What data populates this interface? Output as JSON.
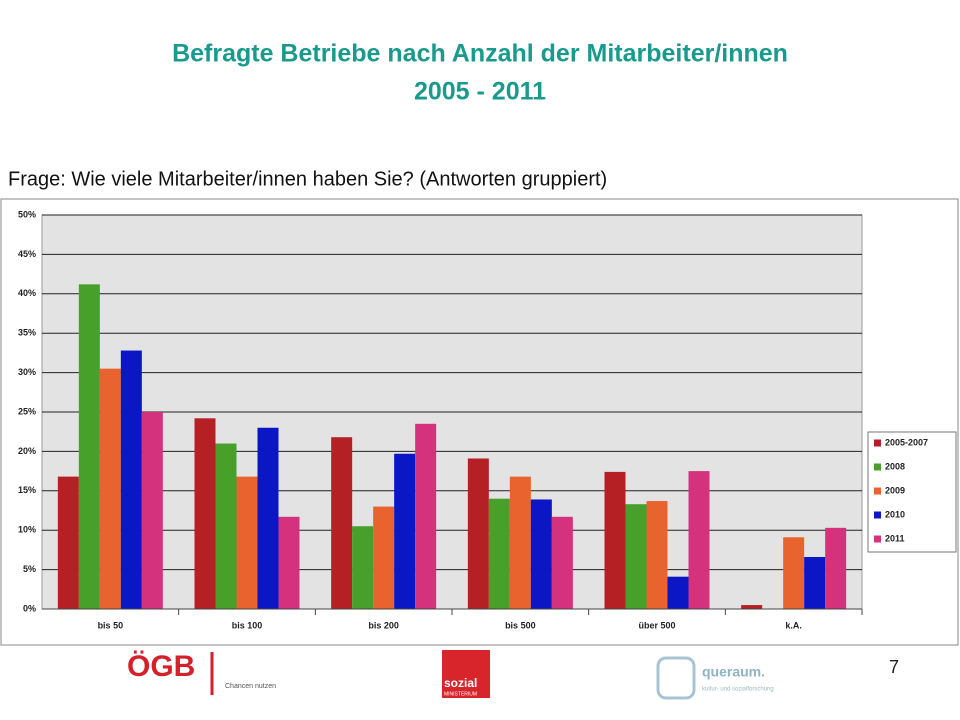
{
  "slide": {
    "title_lines": [
      "Befragte Betriebe nach Anzahl der Mitarbeiter/innen",
      "2005 - 2011"
    ],
    "question": "Frage: Wie viele Mitarbeiter/innen haben Sie? (Antworten gruppiert)",
    "page_number": "7",
    "logos": [
      "ÖGB",
      "Chancen nutzen",
      "sozial",
      "MINISTERIUM",
      "Service",
      "queraum.",
      "kultur- und sozialforschung"
    ]
  },
  "chart_data": {
    "type": "bar",
    "categories": [
      "bis 50",
      "bis 100",
      "bis 200",
      "bis 500",
      "über 500",
      "k.A."
    ],
    "series": [
      {
        "name": "2005-2007",
        "color": "#b52025",
        "values": [
          16.8,
          24.2,
          21.8,
          19.1,
          17.4,
          0.5
        ]
      },
      {
        "name": "2008",
        "color": "#46a02a",
        "values": [
          41.2,
          21.0,
          10.5,
          14.0,
          13.3,
          0
        ]
      },
      {
        "name": "2009",
        "color": "#e8632e",
        "values": [
          30.5,
          16.8,
          13.0,
          16.8,
          13.7,
          9.1
        ]
      },
      {
        "name": "2010",
        "color": "#0b16c4",
        "values": [
          32.8,
          23.0,
          19.7,
          13.9,
          4.1,
          6.6
        ]
      },
      {
        "name": "2011",
        "color": "#d5327d",
        "values": [
          25.0,
          11.7,
          23.5,
          11.7,
          17.5,
          10.3
        ]
      }
    ],
    "ylim": [
      0,
      50
    ],
    "yticks": [
      {
        "value": 0,
        "label": "0%"
      },
      {
        "value": 5,
        "label": "5%"
      },
      {
        "value": 10,
        "label": "10%"
      },
      {
        "value": 15,
        "label": "15%"
      },
      {
        "value": 20,
        "label": "20%"
      },
      {
        "value": 25,
        "label": "25%"
      },
      {
        "value": 30,
        "label": "30%"
      },
      {
        "value": 35,
        "label": "35%"
      },
      {
        "value": 40,
        "label": "40%"
      },
      {
        "value": 45,
        "label": "45%"
      },
      {
        "value": 50,
        "label": "50%"
      }
    ],
    "grid": true,
    "legend": "right"
  }
}
